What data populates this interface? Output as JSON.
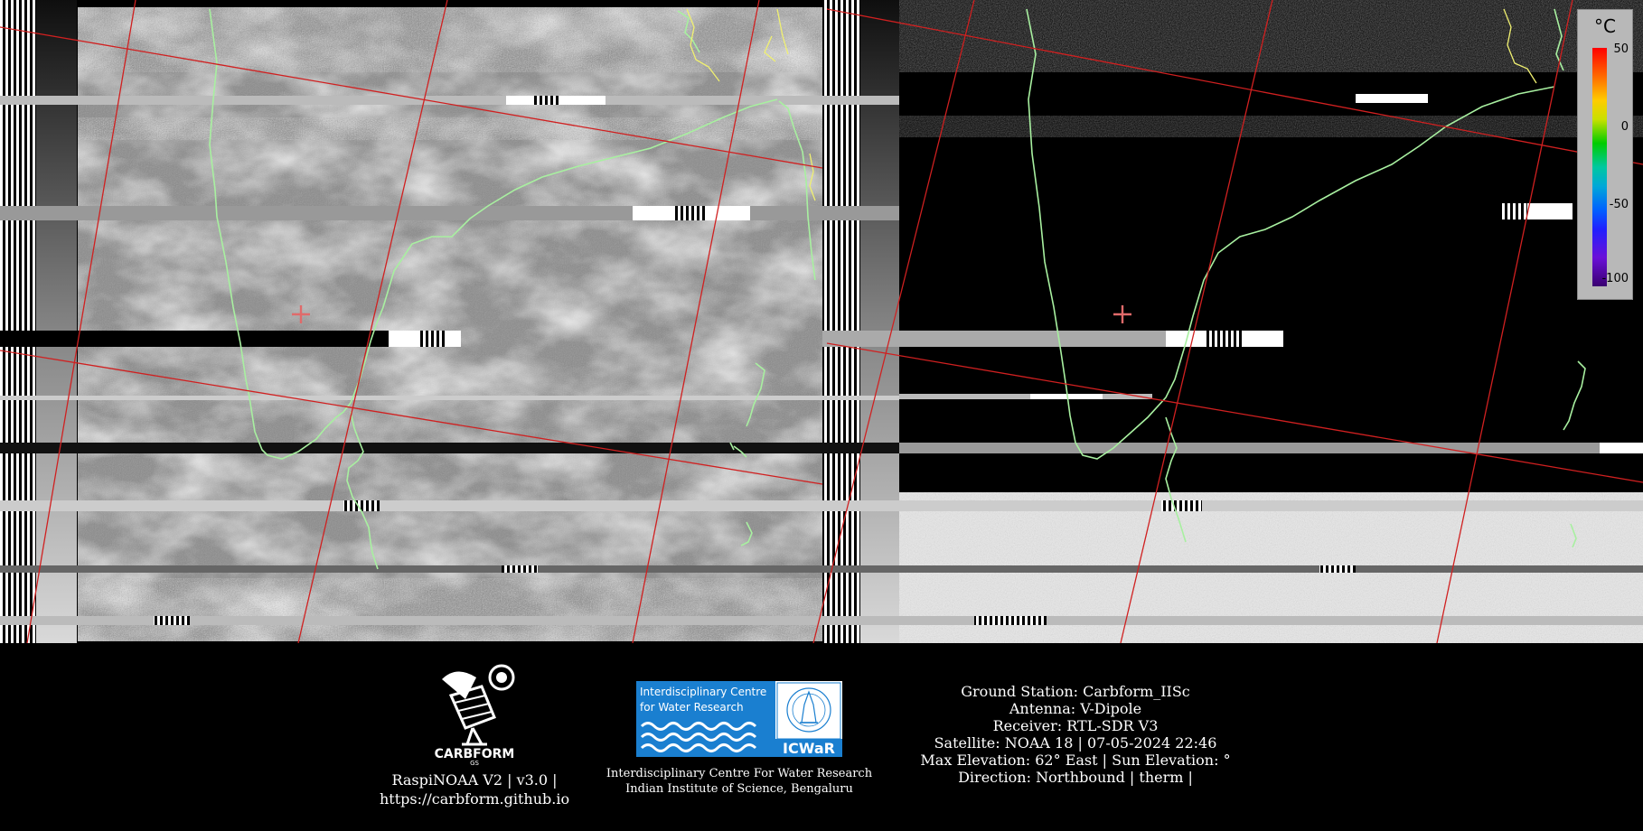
{
  "temperature_scale": {
    "unit": "°C",
    "ticks": [
      "50",
      "0",
      "-50",
      "-100"
    ]
  },
  "footer": {
    "logo_text": "CARBFORM",
    "logo_subtext": "GS",
    "software_line1": "RaspiNOAA V2 | v3.0 |",
    "software_line2": "https://carbform.github.io",
    "icwar_banner_line1": "Interdisciplinary Centre",
    "icwar_banner_line2": "for Water Research",
    "icwar_acronym": "ICWaR",
    "institute_line1": "Interdisciplinary Centre For Water Research",
    "institute_line2": "Indian Institute of Science, Bengaluru",
    "station_info": [
      "Ground Station: Carbform_IISc",
      "Antenna: V-Dipole",
      "Receiver: RTL-SDR V3",
      "Satellite: NOAA 18 | 07-05-2024 22:46",
      "Max Elevation: 62° East | Sun Elevation: °",
      "Direction: Northbound | therm |"
    ]
  },
  "colors": {
    "grid_line": "#d02020",
    "coastline": "#a8f0a0",
    "border_line": "#f0f070",
    "icwar_blue": "#1a7fd0"
  }
}
